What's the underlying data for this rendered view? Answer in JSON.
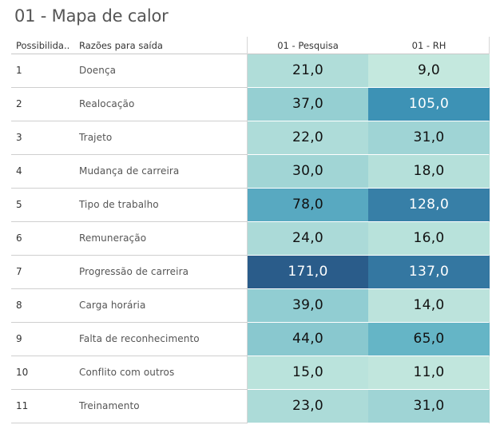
{
  "title": "01 - Mapa de calor",
  "headers": {
    "col_id": "Possibilida..",
    "col_reason": "Razões para saída",
    "col_pesquisa": "01 - Pesquisa",
    "col_rh": "01 - RH"
  },
  "chart_data": {
    "type": "heatmap",
    "title": "01 - Mapa de calor",
    "columns": [
      "01 - Pesquisa",
      "01 - RH"
    ],
    "rows": [
      {
        "id": "1",
        "reason": "Doença",
        "pesquisa": 21.0,
        "rh": 9.0,
        "pesquisa_label": "21,0",
        "rh_label": "9,0"
      },
      {
        "id": "2",
        "reason": "Realocação",
        "pesquisa": 37.0,
        "rh": 105.0,
        "pesquisa_label": "37,0",
        "rh_label": "105,0"
      },
      {
        "id": "3",
        "reason": "Trajeto",
        "pesquisa": 22.0,
        "rh": 31.0,
        "pesquisa_label": "22,0",
        "rh_label": "31,0"
      },
      {
        "id": "4",
        "reason": "Mudança de carreira",
        "pesquisa": 30.0,
        "rh": 18.0,
        "pesquisa_label": "30,0",
        "rh_label": "18,0"
      },
      {
        "id": "5",
        "reason": "Tipo de trabalho",
        "pesquisa": 78.0,
        "rh": 128.0,
        "pesquisa_label": "78,0",
        "rh_label": "128,0"
      },
      {
        "id": "6",
        "reason": "Remuneração",
        "pesquisa": 24.0,
        "rh": 16.0,
        "pesquisa_label": "24,0",
        "rh_label": "16,0"
      },
      {
        "id": "7",
        "reason": "Progressão de carreira",
        "pesquisa": 171.0,
        "rh": 137.0,
        "pesquisa_label": "171,0",
        "rh_label": "137,0"
      },
      {
        "id": "8",
        "reason": "Carga horária",
        "pesquisa": 39.0,
        "rh": 14.0,
        "pesquisa_label": "39,0",
        "rh_label": "14,0"
      },
      {
        "id": "9",
        "reason": "Falta de reconhecimento",
        "pesquisa": 44.0,
        "rh": 65.0,
        "pesquisa_label": "44,0",
        "rh_label": "65,0"
      },
      {
        "id": "10",
        "reason": "Conflito com outros",
        "pesquisa": 15.0,
        "rh": 11.0,
        "pesquisa_label": "15,0",
        "rh_label": "11,0"
      },
      {
        "id": "11",
        "reason": "Treinamento",
        "pesquisa": 23.0,
        "rh": 31.0,
        "pesquisa_label": "23,0",
        "rh_label": "31,0"
      }
    ],
    "value_range": [
      9.0,
      171.0
    ],
    "color_scale": [
      "#c4e8de",
      "#2a5c8a"
    ]
  }
}
